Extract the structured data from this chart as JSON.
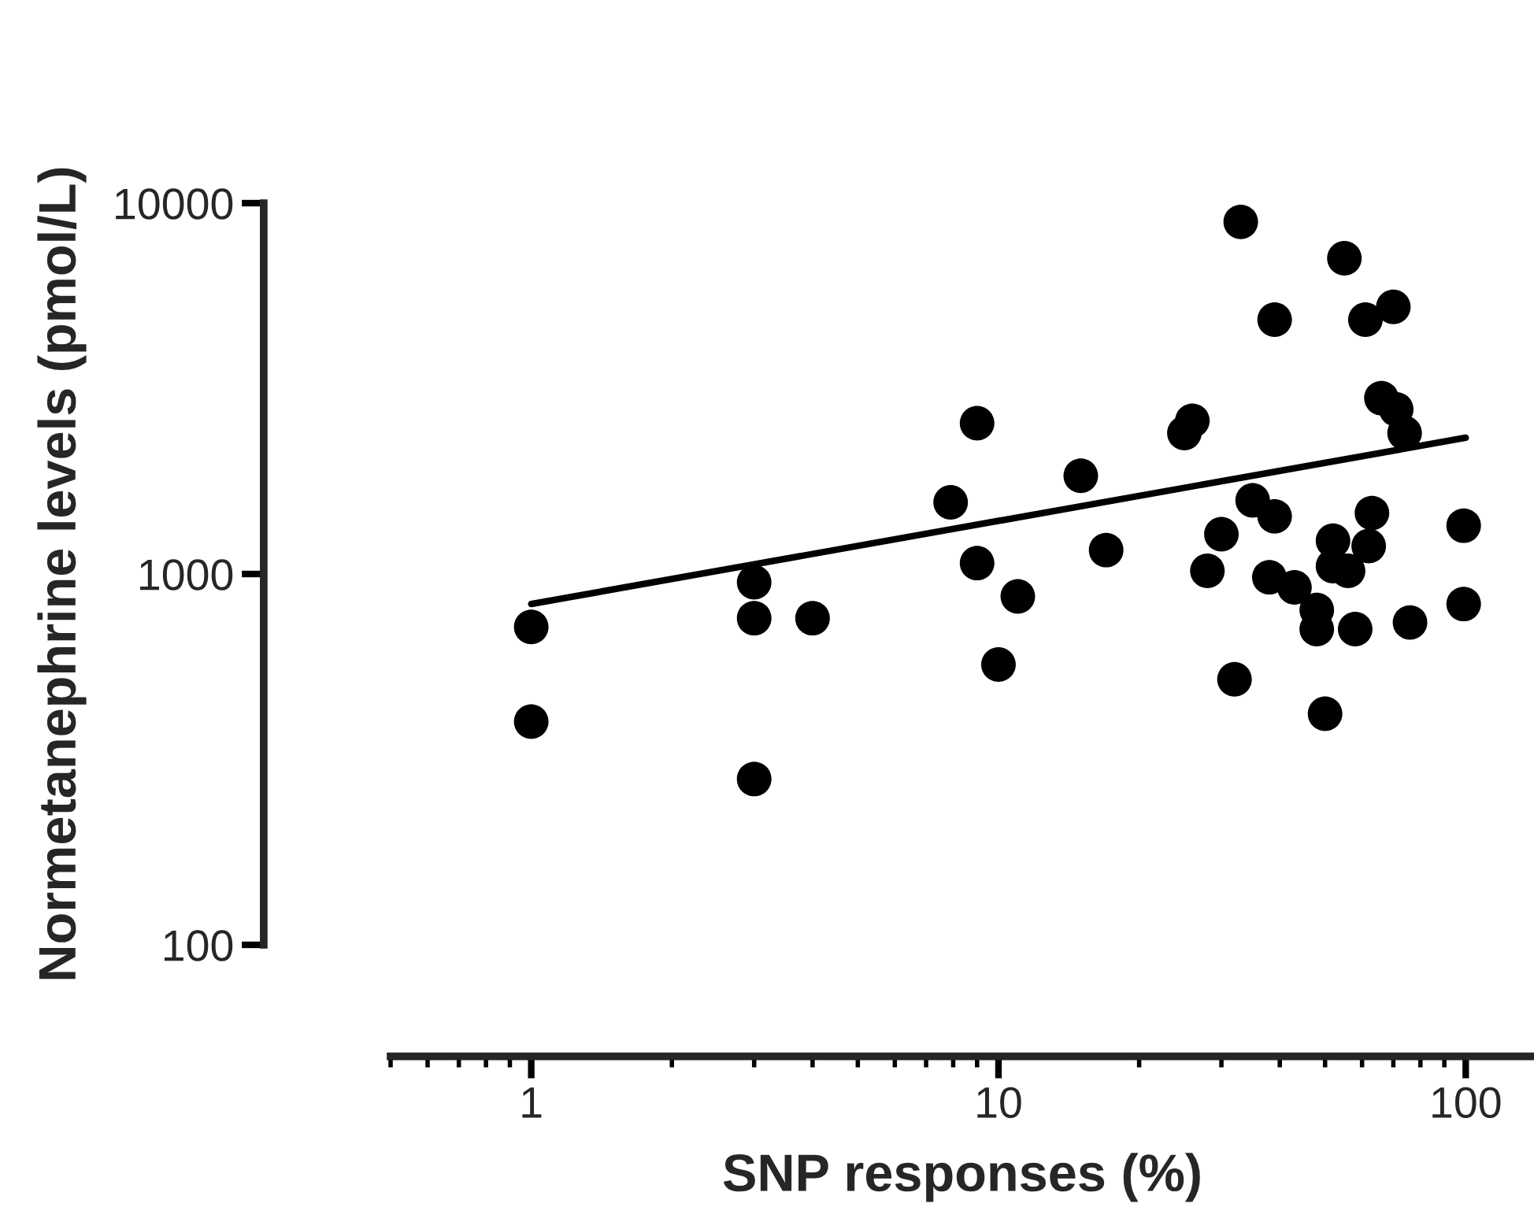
{
  "chart_data": {
    "type": "scatter",
    "xlabel": "SNP responses (%)",
    "ylabel": "Normetanephrine levels (pmol/L)",
    "log": "xy",
    "xlim": [
      0.5,
      140
    ],
    "ylim": [
      100,
      10000
    ],
    "xticks": [
      1,
      10,
      100
    ],
    "yticks": [
      100,
      1000,
      10000
    ],
    "grid": false,
    "legend": false,
    "marker": "circle",
    "series": [
      {
        "color": "#000000",
        "x": [
          1,
          1,
          3,
          3,
          3,
          4,
          7.9,
          9,
          9,
          11,
          10,
          15,
          17,
          25,
          26,
          33,
          55,
          39,
          61,
          70,
          66,
          71,
          74,
          35,
          39,
          30,
          28,
          32,
          50,
          99,
          99,
          76,
          63,
          62,
          52,
          56,
          38,
          43,
          48,
          58,
          48,
          52
        ],
        "values": [
          720,
          400,
          280,
          950,
          760,
          760,
          1560,
          2550,
          1070,
          870,
          570,
          1840,
          1160,
          2400,
          2590,
          8900,
          7100,
          4850,
          4850,
          5250,
          2980,
          2780,
          2400,
          1580,
          1430,
          1280,
          1020,
          520,
          420,
          1350,
          830,
          740,
          1460,
          1190,
          1230,
          1020,
          980,
          920,
          710,
          710,
          800,
          1050
        ]
      },
      {
        "type": "line",
        "color": "#000000",
        "line_style": "solid",
        "marker": "none",
        "x": [
          1,
          100
        ],
        "values": [
          830,
          2330
        ]
      }
    ]
  }
}
